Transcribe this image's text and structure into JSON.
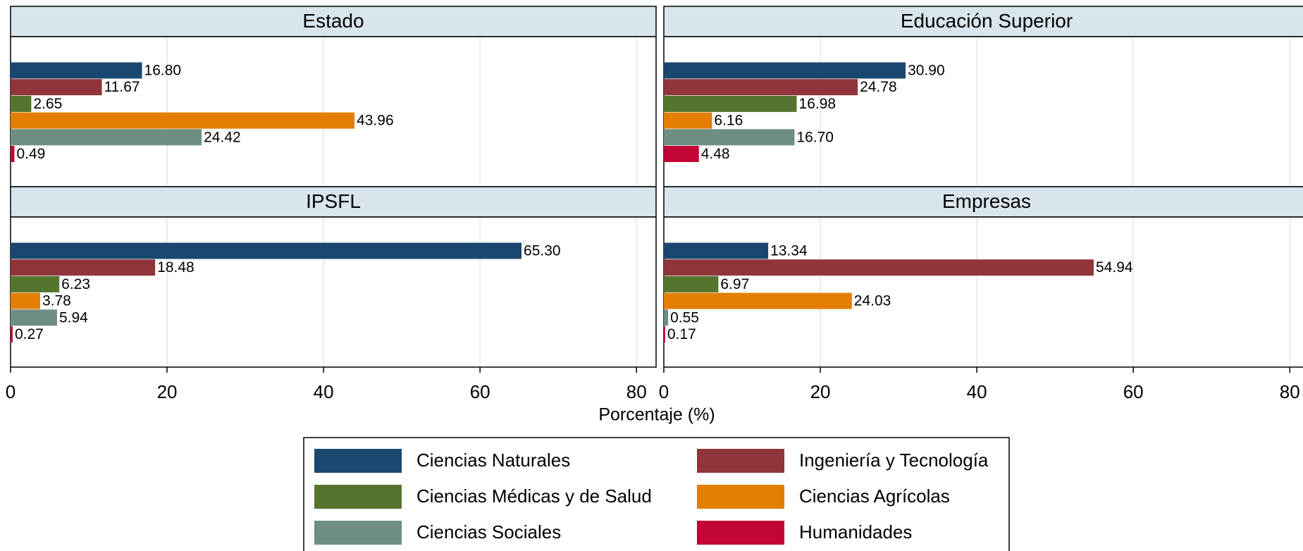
{
  "chart_data": {
    "type": "bar",
    "orientation": "horizontal",
    "xlabel": "Porcentaje (%)",
    "xlim": [
      0,
      82.5
    ],
    "xticks": [
      0,
      20,
      40,
      60,
      80
    ],
    "grid": true,
    "legend": "bottom",
    "panels": [
      "Estado",
      "Educación Superior",
      "IPSFL",
      "Empresas"
    ],
    "series": [
      {
        "name": "Ciencias Naturales",
        "color": "#1a476f",
        "values": [
          16.8,
          30.9,
          65.3,
          13.34
        ],
        "value_labels": [
          "16.80",
          "30.90",
          "65.30",
          "13.34"
        ]
      },
      {
        "name": "Ingeniería y Tecnología",
        "color": "#90353b",
        "values": [
          11.67,
          24.78,
          18.48,
          54.94
        ],
        "value_labels": [
          "11.67",
          "24.78",
          "18.48",
          "54.94"
        ]
      },
      {
        "name": "Ciencias Médicas y de Salud",
        "color": "#55752f",
        "values": [
          2.65,
          16.98,
          6.23,
          6.97
        ],
        "value_labels": [
          "2.65",
          "16.98",
          "6.23",
          "6.97"
        ]
      },
      {
        "name": "Ciencias Agrícolas",
        "color": "#e37e00",
        "values": [
          43.96,
          6.16,
          3.78,
          24.03
        ],
        "value_labels": [
          "43.96",
          "6.16",
          "3.78",
          "24.03"
        ]
      },
      {
        "name": "Ciencias Sociales",
        "color": "#6e8e84",
        "values": [
          24.42,
          16.7,
          5.94,
          0.55
        ],
        "value_labels": [
          "24.42",
          "16.70",
          "5.94",
          "0.55"
        ]
      },
      {
        "name": "Humanidades",
        "color": "#c10534",
        "values": [
          0.49,
          4.48,
          0.27,
          0.17
        ],
        "value_labels": [
          "0.49",
          "4.48",
          "0.27",
          "0.17"
        ]
      }
    ]
  }
}
